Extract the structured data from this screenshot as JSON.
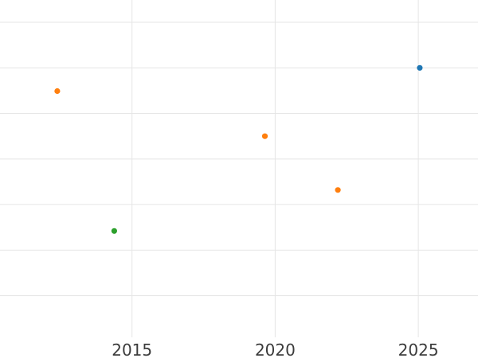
{
  "chart_data": {
    "type": "scatter",
    "title": "",
    "xlabel": "",
    "ylabel": "",
    "grid": true,
    "legend": false,
    "x_tick_labels": [
      "2015",
      "2020",
      "2025"
    ],
    "x_tick_values": [
      2015,
      2020,
      2025
    ],
    "y_gridline_values": [
      1,
      2,
      3,
      4,
      5,
      6,
      7
    ],
    "y_axis_tick_labels_visible": false,
    "x_visible_range": [
      2010.4,
      2027.1
    ],
    "y_visible_range": [
      0.1,
      7.5
    ],
    "series": [
      {
        "name": "orange",
        "color": "#ff7f0e",
        "points": [
          {
            "x": 2012.39,
            "y": 5.49
          },
          {
            "x": 2019.64,
            "y": 4.5
          },
          {
            "x": 2022.19,
            "y": 3.32
          }
        ]
      },
      {
        "name": "green",
        "color": "#2ca02c",
        "points": [
          {
            "x": 2014.38,
            "y": 2.42
          }
        ]
      },
      {
        "name": "blue",
        "color": "#1f77b4",
        "points": [
          {
            "x": 2025.05,
            "y": 6.0
          }
        ]
      }
    ]
  },
  "colors": {
    "background": "#ffffff",
    "gridline": "#e5e5e5",
    "tick_label": "#3b3b3b"
  }
}
